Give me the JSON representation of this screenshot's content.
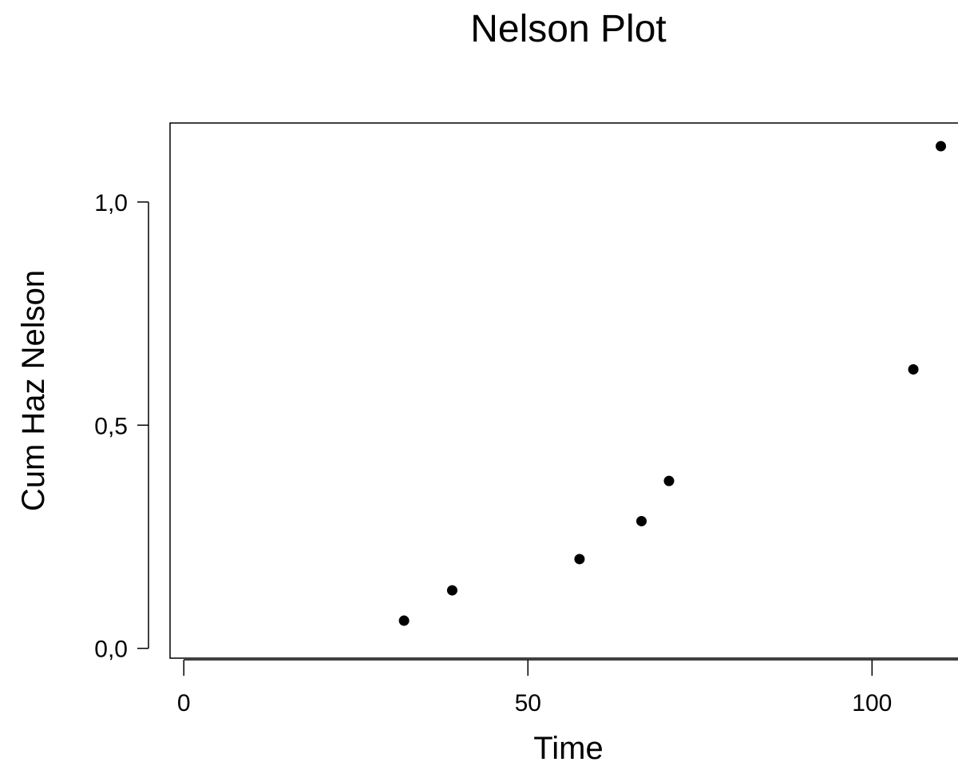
{
  "chart_data": {
    "type": "scatter",
    "title": "Nelson Plot",
    "xlabel": "Time",
    "ylabel": "Cum Haz Nelson",
    "x_ticks": [
      0,
      50,
      100
    ],
    "x_tick_labels": [
      "0",
      "50",
      "100"
    ],
    "y_ticks": [
      0.0,
      0.5,
      1.0
    ],
    "y_tick_labels": [
      "0,0",
      "0,5",
      "1,0"
    ],
    "xlim": [
      -2,
      114
    ],
    "ylim": [
      -0.022,
      1.177
    ],
    "grid": false,
    "legend": "none",
    "marker_color": "#000000",
    "series": [
      {
        "x": [
          32,
          39,
          57.5,
          66.5,
          70.5,
          106,
          110
        ],
        "y": [
          0.062,
          0.13,
          0.2,
          0.285,
          0.375,
          0.625,
          1.125
        ]
      }
    ]
  }
}
